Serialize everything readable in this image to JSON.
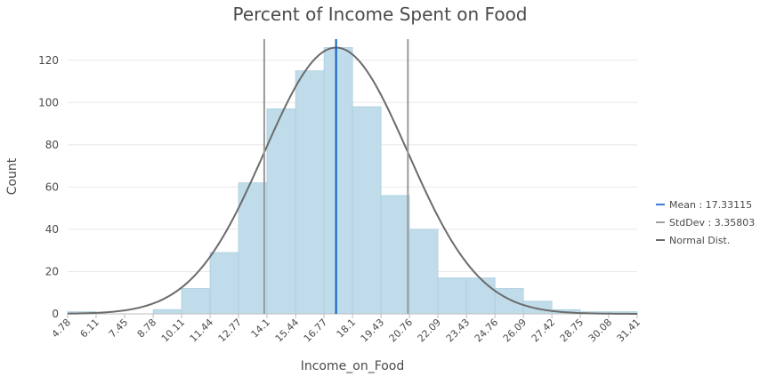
{
  "chart_data": {
    "type": "bar",
    "title": "Percent of Income Spent on Food",
    "xlabel": "Income_on_Food",
    "ylabel": "Count",
    "ylim": [
      0,
      130
    ],
    "yticks": [
      0,
      20,
      40,
      60,
      80,
      100,
      120
    ],
    "bin_edges": [
      4.78,
      6.11,
      7.45,
      8.78,
      10.11,
      11.44,
      12.77,
      14.1,
      15.44,
      16.77,
      18.1,
      19.43,
      20.76,
      22.09,
      23.43,
      24.76,
      26.09,
      27.42,
      28.75,
      30.08,
      31.41
    ],
    "tick_labels": [
      "4.78",
      "6.11",
      "7.45",
      "8.78",
      "10.11",
      "11.44",
      "12.77",
      "14.1",
      "15.44",
      "16.77",
      "18.1",
      "19.43",
      "20.76",
      "22.09",
      "23.43",
      "24.76",
      "26.09",
      "27.42",
      "28.75",
      "30.08",
      "31.41"
    ],
    "values": [
      1,
      0,
      0,
      2,
      12,
      29,
      62,
      97,
      115,
      126,
      98,
      56,
      40,
      17,
      17,
      12,
      6,
      2,
      1,
      1
    ],
    "mean": 17.33115,
    "stddev": 3.35803,
    "normal_peak": 126,
    "grid": "horizontal",
    "legend_position": "right",
    "colors": {
      "bar_fill": "#c0dcea",
      "bar_stroke": "#a8cddf",
      "mean_line": "#0b5fbf",
      "stddev_line": "#9a9a9a",
      "normal_curve": "#6b6b6b",
      "grid": "#e8e8e8",
      "axis_text": "#4a4a4a"
    },
    "legend": [
      {
        "label": "Mean : 17.33115",
        "color": "#3a7fd5"
      },
      {
        "label": "StdDev : 3.35803",
        "color": "#a0a0a0"
      },
      {
        "label": "Normal Dist.",
        "color": "#6b6b6b"
      }
    ]
  }
}
